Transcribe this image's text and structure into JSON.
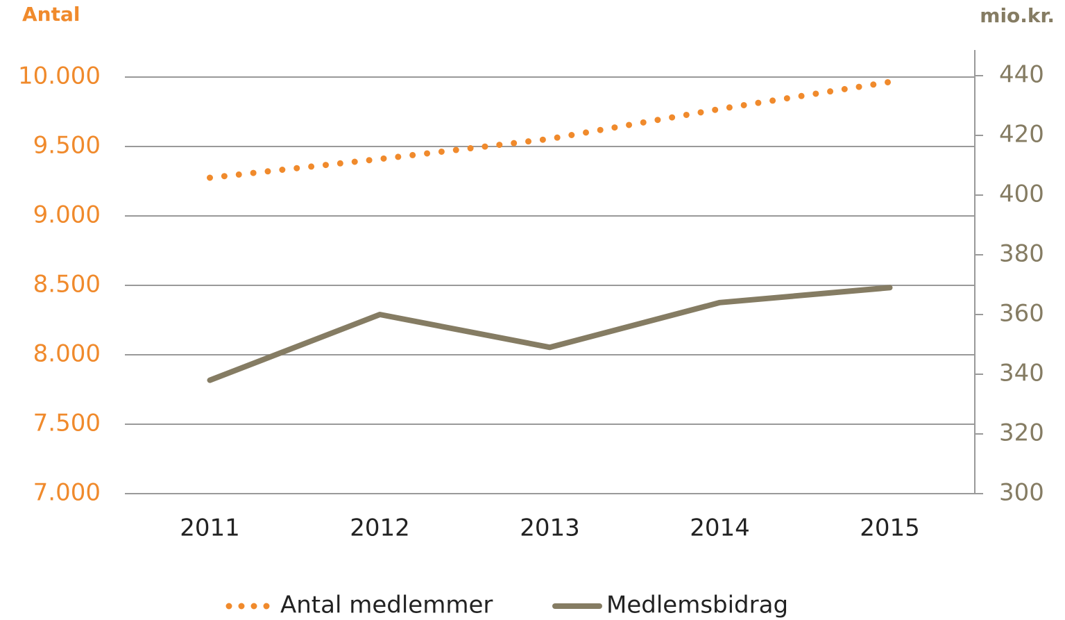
{
  "chart_data": {
    "type": "line",
    "y_axis_title": "Antal",
    "y2_axis_title": "mio.kr.",
    "categories": [
      "2011",
      "2012",
      "2013",
      "2014",
      "2015"
    ],
    "series": [
      {
        "name": "Antal medlemmer",
        "color": "#f08a2c",
        "style": "dotted",
        "values": [
          9275,
          9410,
          9555,
          9770,
          9965
        ]
      },
      {
        "name": "Medlemsbidrag",
        "color": "#857c63",
        "style": "solid",
        "axis": "y2",
        "values": [
          338,
          360,
          349,
          364,
          369
        ]
      }
    ],
    "ylim": [
      7000,
      10000
    ],
    "yticks": [
      {
        "value": 7000,
        "label": "7.000"
      },
      {
        "value": 7500,
        "label": "7.500"
      },
      {
        "value": 8000,
        "label": "8.000"
      },
      {
        "value": 8500,
        "label": "8.500"
      },
      {
        "value": 9000,
        "label": "9.000"
      },
      {
        "value": 9500,
        "label": "9.500"
      },
      {
        "value": 10000,
        "label": "10.000"
      }
    ],
    "y2lim": [
      300,
      440
    ],
    "y2ticks": [
      300,
      320,
      340,
      360,
      380,
      400,
      420,
      440
    ],
    "grid": true,
    "legend": "bottom"
  }
}
